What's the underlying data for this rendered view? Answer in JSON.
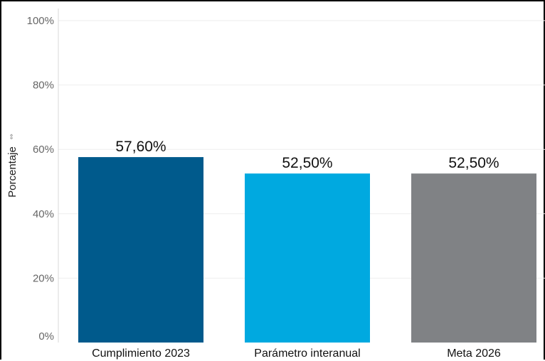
{
  "chart_data": {
    "type": "bar",
    "title": "",
    "xlabel": "",
    "ylabel": "Porcentaje",
    "ylim": [
      0,
      100
    ],
    "y_ticks": [
      "0%",
      "20%",
      "40%",
      "60%",
      "80%",
      "100%"
    ],
    "y_tick_values": [
      0,
      20,
      40,
      60,
      80,
      100
    ],
    "grid": true,
    "categories": [
      "Cumplimiento 2023",
      "Parámetro interanual",
      "Meta 2026"
    ],
    "values": [
      57.6,
      52.5,
      52.5
    ],
    "value_labels": [
      "57,60%",
      "52,50%",
      "52,50%"
    ],
    "colors": [
      "#005a8c",
      "#00a9e0",
      "#808285"
    ]
  }
}
